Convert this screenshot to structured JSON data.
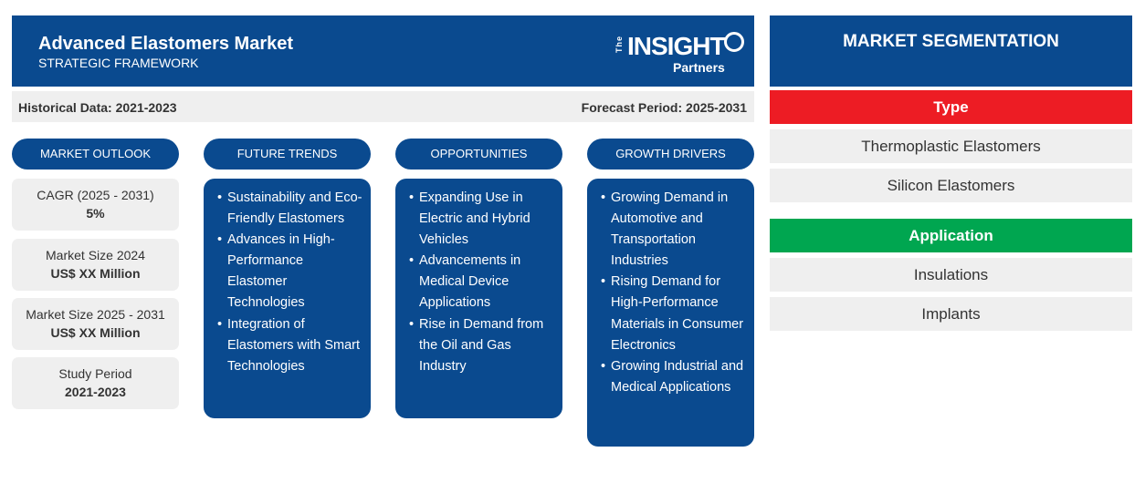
{
  "header": {
    "title": "Advanced Elastomers Market",
    "subtitle": "STRATEGIC FRAMEWORK",
    "logo": {
      "the": "The",
      "insight": "INSIGHT",
      "partners": "Partners"
    }
  },
  "period": {
    "historical": "Historical Data: 2021-2023",
    "forecast": "Forecast Period: 2025-2031"
  },
  "columns": {
    "market_outlook": "MARKET OUTLOOK",
    "future_trends": "FUTURE TRENDS",
    "opportunities": "OPPORTUNITIES",
    "growth_drivers": "GROWTH DRIVERS"
  },
  "stats": [
    {
      "label": "CAGR (2025 - 2031)",
      "value": "5%"
    },
    {
      "label": "Market Size 2024",
      "value": "US$ XX Million"
    },
    {
      "label": "Market Size 2025 - 2031",
      "value": "US$ XX Million"
    },
    {
      "label": "Study Period",
      "value": "2021-2023"
    }
  ],
  "future_trends": [
    "Sustainability and Eco-Friendly Elastomers",
    "Advances in High-Performance Elastomer Technologies",
    "Integration of Elastomers with Smart Technologies"
  ],
  "opportunities": [
    "Expanding Use in Electric and Hybrid Vehicles",
    "Advancements in Medical Device Applications",
    "Rise in Demand from the Oil and Gas Industry"
  ],
  "growth_drivers": [
    "Growing Demand in Automotive and Transportation Industries",
    "Rising Demand for High-Performance Materials in Consumer Electronics",
    "Growing Industrial and Medical Applications"
  ],
  "segmentation": {
    "title": "MARKET SEGMENTATION",
    "type_label": "Type",
    "type_color": "#ed1c24",
    "type_items": [
      "Thermoplastic Elastomers",
      "Silicon Elastomers"
    ],
    "application_label": "Application",
    "application_color": "#00a650",
    "application_items": [
      "Insulations",
      "Implants"
    ]
  },
  "colors": {
    "primary": "#0a4a8f",
    "panel": "#efefef"
  }
}
